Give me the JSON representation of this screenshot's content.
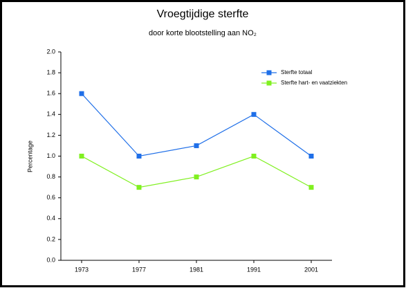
{
  "chart_data": {
    "type": "line",
    "title": "Vroegtijdige sterfte",
    "subtitle": "door korte blootstelling aan NO₂",
    "y_label": "Percentage",
    "categories": [
      "1973",
      "1977",
      "1981",
      "1991",
      "2001"
    ],
    "series": [
      {
        "name": "Sterfte totaal",
        "color": "#1f6fe8",
        "values": [
          1.6,
          1.0,
          1.1,
          1.4,
          1.0
        ]
      },
      {
        "name": "Sterfte hart- en vaatziekten",
        "color": "#80f020",
        "values": [
          1.0,
          0.7,
          0.8,
          1.0,
          0.7
        ]
      }
    ],
    "ylim": [
      0,
      2
    ],
    "yticks": [
      {
        "value": 0,
        "label": "0.0"
      },
      {
        "value": 0.2,
        "label": "0.2"
      },
      {
        "value": 0.4,
        "label": "0.4"
      },
      {
        "value": 0.6,
        "label": "0.6"
      },
      {
        "value": 0.8,
        "label": "0.8"
      },
      {
        "value": 1,
        "label": "1.0"
      },
      {
        "value": 1.2,
        "label": "1.2"
      },
      {
        "value": 1.4,
        "label": "1.4"
      },
      {
        "value": 1.6,
        "label": "1.6"
      },
      {
        "value": 1.8,
        "label": "1.8"
      },
      {
        "value": 2,
        "label": "2.0"
      }
    ],
    "legend": "upper right",
    "grid": false
  }
}
